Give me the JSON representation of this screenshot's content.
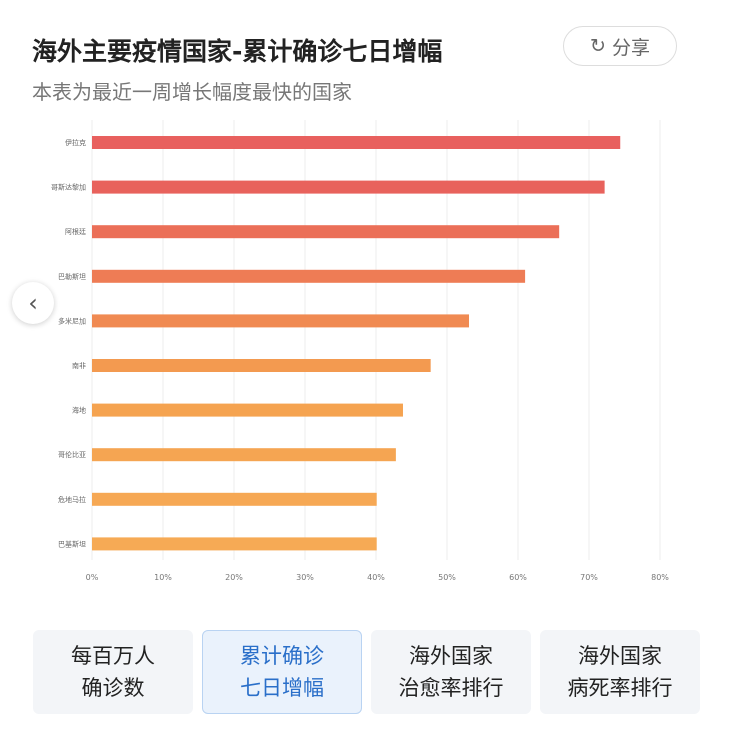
{
  "header": {
    "title": "海外主要疫情国家-累计确诊七日增幅",
    "subtitle": "本表为最近一周增长幅度最快的国家",
    "share_label": "分享"
  },
  "chart_data": {
    "type": "bar",
    "orientation": "horizontal",
    "categories": [
      "伊拉克",
      "哥斯达黎加",
      "阿根廷",
      "巴勒斯坦",
      "多米尼加",
      "南非",
      "海地",
      "哥伦比亚",
      "危地马拉",
      "巴基斯坦"
    ],
    "values": [
      74.4,
      72.2,
      65.8,
      61.0,
      53.1,
      47.7,
      43.8,
      42.8,
      40.1,
      40.1
    ],
    "xticks": [
      "0%",
      "10%",
      "20%",
      "30%",
      "40%",
      "50%",
      "60%",
      "70%",
      "80%"
    ],
    "xlim": [
      0,
      80
    ],
    "colors": [
      "#e8605e",
      "#e8625c",
      "#eb6f58",
      "#ee7c55",
      "#f08a52",
      "#f39a50",
      "#f5a350",
      "#f5a552",
      "#f6a854",
      "#f6aa55"
    ],
    "grid": true
  },
  "tabs": [
    {
      "line1": "每百万人",
      "line2": "确诊数"
    },
    {
      "line1": "累计确诊",
      "line2": "七日增幅"
    },
    {
      "line1": "海外国家",
      "line2": "治愈率排行"
    },
    {
      "line1": "海外国家",
      "line2": "病死率排行"
    }
  ]
}
